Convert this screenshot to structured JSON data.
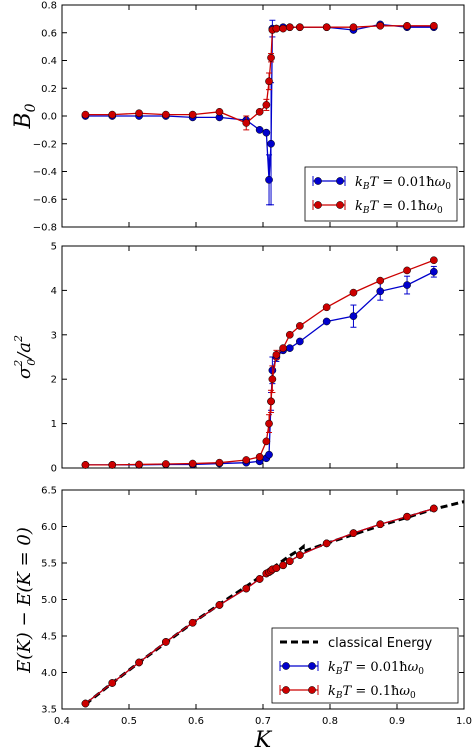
{
  "chart_data": [
    {
      "type": "line",
      "ylabel": "B_0",
      "xlim": [
        0.4,
        1.0
      ],
      "ylim": [
        -0.8,
        0.8
      ],
      "yticks": [
        "−0.8",
        "−0.6",
        "−0.4",
        "−0.2",
        "0.0",
        "0.2",
        "0.4",
        "0.6",
        "0.8"
      ],
      "legend_position": "lower-right",
      "series": [
        {
          "name": "k_B T = 0.01ħω_0",
          "color": "#0000cc",
          "x": [
            0.435,
            0.475,
            0.515,
            0.555,
            0.595,
            0.635,
            0.675,
            0.695,
            0.705,
            0.709,
            0.712,
            0.714,
            0.72,
            0.73,
            0.74,
            0.755,
            0.795,
            0.835,
            0.875,
            0.915,
            0.955
          ],
          "y": [
            0.0,
            0.0,
            0.0,
            0.0,
            -0.01,
            -0.01,
            -0.03,
            -0.1,
            -0.12,
            -0.46,
            -0.2,
            0.63,
            0.63,
            0.64,
            0.64,
            0.64,
            0.64,
            0.62,
            0.66,
            0.64,
            0.64
          ],
          "err": [
            0,
            0,
            0,
            0,
            0,
            0,
            0,
            0,
            0,
            0.18,
            0.44,
            0.06,
            0,
            0,
            0,
            0,
            0,
            0,
            0,
            0,
            0
          ]
        },
        {
          "name": "k_B T = 0.1ħω_0",
          "color": "#cc0000",
          "x": [
            0.435,
            0.475,
            0.515,
            0.555,
            0.595,
            0.635,
            0.675,
            0.695,
            0.705,
            0.709,
            0.712,
            0.714,
            0.72,
            0.73,
            0.74,
            0.755,
            0.795,
            0.835,
            0.875,
            0.915,
            0.955
          ],
          "y": [
            0.01,
            0.01,
            0.02,
            0.01,
            0.01,
            0.03,
            -0.05,
            0.03,
            0.08,
            0.25,
            0.42,
            0.62,
            0.63,
            0.63,
            0.64,
            0.64,
            0.64,
            0.64,
            0.65,
            0.65,
            0.65
          ],
          "err": [
            0,
            0,
            0,
            0,
            0,
            0,
            0.05,
            0,
            0.04,
            0.06,
            0.03,
            0,
            0,
            0,
            0,
            0,
            0,
            0,
            0,
            0,
            0
          ]
        }
      ]
    },
    {
      "type": "line",
      "ylabel": "σ_0^2/a^2",
      "xlim": [
        0.4,
        1.0
      ],
      "ylim": [
        0,
        5
      ],
      "yticks": [
        "0",
        "1",
        "2",
        "3",
        "4",
        "5"
      ],
      "series": [
        {
          "name": "k_B T = 0.01ħω_0",
          "color": "#0000cc",
          "x": [
            0.435,
            0.475,
            0.515,
            0.555,
            0.595,
            0.635,
            0.675,
            0.695,
            0.705,
            0.709,
            0.712,
            0.714,
            0.72,
            0.73,
            0.74,
            0.755,
            0.795,
            0.835,
            0.875,
            0.915,
            0.955
          ],
          "y": [
            0.07,
            0.07,
            0.07,
            0.08,
            0.08,
            0.1,
            0.12,
            0.15,
            0.22,
            0.3,
            1.5,
            2.2,
            2.5,
            2.65,
            2.7,
            2.85,
            3.3,
            3.42,
            3.98,
            4.12,
            4.42
          ],
          "err": [
            0,
            0,
            0,
            0,
            0,
            0,
            0,
            0,
            0,
            0,
            0.2,
            0.3,
            0.1,
            0,
            0,
            0,
            0,
            0.25,
            0.2,
            0.2,
            0.12
          ]
        },
        {
          "name": "k_B T = 0.1ħω_0",
          "color": "#cc0000",
          "x": [
            0.435,
            0.475,
            0.515,
            0.555,
            0.595,
            0.635,
            0.675,
            0.695,
            0.705,
            0.709,
            0.712,
            0.714,
            0.72,
            0.73,
            0.74,
            0.755,
            0.795,
            0.835,
            0.875,
            0.915,
            0.955
          ],
          "y": [
            0.07,
            0.07,
            0.08,
            0.09,
            0.1,
            0.12,
            0.18,
            0.25,
            0.6,
            1.0,
            1.5,
            2.0,
            2.55,
            2.7,
            3.0,
            3.2,
            3.62,
            3.95,
            4.22,
            4.45,
            4.68
          ],
          "err": [
            0,
            0,
            0,
            0,
            0,
            0,
            0,
            0,
            0,
            0.2,
            0.25,
            0.3,
            0.1,
            0,
            0,
            0,
            0,
            0,
            0,
            0,
            0
          ]
        }
      ]
    },
    {
      "type": "line",
      "xlabel": "K",
      "ylabel": "E(K) − E(K = 0)",
      "xlim": [
        0.4,
        1.0
      ],
      "ylim": [
        3.5,
        6.7
      ],
      "xticks": [
        "0.4",
        "0.5",
        "0.6",
        "0.7",
        "0.8",
        "0.9",
        "1.0"
      ],
      "yticks": [
        "3.5",
        "4.0",
        "4.5",
        "5.0",
        "5.5",
        "6.0",
        "6.5"
      ],
      "legend_position": "lower-right",
      "classical": {
        "name": "classical Energy",
        "x": [
          0.435,
          0.475,
          0.515,
          0.555,
          0.595,
          0.635,
          0.675,
          0.7,
          0.72,
          0.74,
          0.755,
          0.76,
          0.76,
          0.795,
          0.835,
          0.875,
          0.915,
          0.955,
          1.0
        ],
        "y": [
          3.57,
          3.88,
          4.18,
          4.47,
          4.76,
          5.03,
          5.29,
          5.46,
          5.6,
          5.74,
          5.83,
          5.87,
          5.8,
          5.92,
          6.05,
          6.18,
          6.3,
          6.42,
          6.53
        ]
      },
      "series": [
        {
          "name": "k_B T = 0.01ħω_0",
          "color": "#0000cc",
          "x": [
            0.435,
            0.475,
            0.515,
            0.555,
            0.595,
            0.635,
            0.675,
            0.695,
            0.705,
            0.709,
            0.712,
            0.714,
            0.72,
            0.73,
            0.74,
            0.755,
            0.795,
            0.835,
            0.875,
            0.915,
            0.955
          ],
          "y": [
            3.58,
            3.88,
            4.18,
            4.48,
            4.76,
            5.02,
            5.26,
            5.4,
            5.48,
            5.5,
            5.52,
            5.54,
            5.56,
            5.6,
            5.66,
            5.75,
            5.92,
            6.07,
            6.2,
            6.31,
            6.43
          ],
          "err": [
            0,
            0,
            0,
            0,
            0,
            0,
            0,
            0,
            0,
            0,
            0,
            0,
            0,
            0,
            0,
            0,
            0,
            0,
            0,
            0,
            0
          ]
        },
        {
          "name": "k_B T = 0.1ħω_0",
          "color": "#cc0000",
          "x": [
            0.435,
            0.475,
            0.515,
            0.555,
            0.595,
            0.635,
            0.675,
            0.695,
            0.705,
            0.709,
            0.712,
            0.714,
            0.72,
            0.73,
            0.74,
            0.755,
            0.795,
            0.835,
            0.875,
            0.915,
            0.955
          ],
          "y": [
            3.58,
            3.88,
            4.18,
            4.48,
            4.76,
            5.02,
            5.26,
            5.4,
            5.48,
            5.5,
            5.52,
            5.54,
            5.56,
            5.6,
            5.66,
            5.75,
            5.92,
            6.07,
            6.2,
            6.31,
            6.43
          ],
          "err": [
            0,
            0,
            0,
            0,
            0,
            0,
            0,
            0,
            0,
            0,
            0,
            0,
            0,
            0,
            0,
            0,
            0,
            0,
            0,
            0,
            0
          ]
        }
      ]
    }
  ]
}
